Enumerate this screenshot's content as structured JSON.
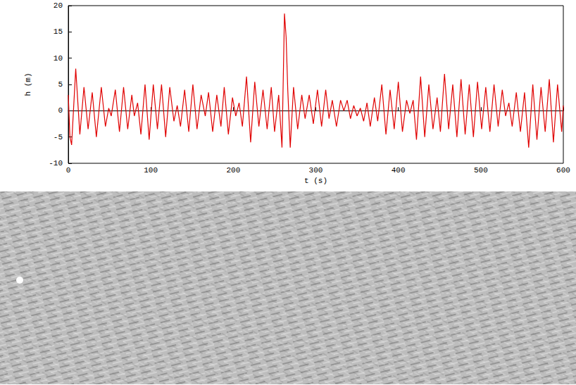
{
  "chart_data": {
    "type": "line",
    "x_label": "t (s)",
    "y_label": "h (m)",
    "color": "#e00000",
    "x": [
      0,
      2,
      4,
      9,
      14,
      19,
      24,
      29,
      34,
      40,
      45,
      49,
      52,
      57,
      62,
      67,
      72,
      77,
      80,
      84,
      88,
      93,
      98,
      103,
      108,
      113,
      118,
      123,
      128,
      132,
      136,
      141,
      146,
      151,
      156,
      161,
      166,
      170,
      175,
      180,
      185,
      189,
      194,
      199,
      203,
      207,
      211,
      216,
      221,
      226,
      231,
      236,
      241,
      246,
      250,
      255,
      259,
      262,
      264,
      266,
      269,
      273,
      278,
      283,
      287,
      292,
      297,
      302,
      307,
      312,
      316,
      320,
      325,
      330,
      334,
      338,
      342,
      346,
      350,
      354,
      358,
      362,
      366,
      371,
      375,
      380,
      385,
      390,
      395,
      400,
      405,
      410,
      414,
      418,
      422,
      427,
      432,
      437,
      442,
      447,
      451,
      456,
      461,
      466,
      471,
      476,
      481,
      486,
      491,
      496,
      501,
      506,
      511,
      516,
      521,
      526,
      530,
      534,
      538,
      543,
      548,
      553,
      558,
      563,
      568,
      573,
      578,
      583,
      588,
      593,
      598,
      600
    ],
    "values": [
      3,
      -5,
      -6.5,
      8,
      -4.5,
      4.5,
      -3.5,
      3.5,
      -5,
      4.5,
      -3,
      0.5,
      -1,
      4,
      -4,
      4.5,
      -3.5,
      3,
      -1,
      1.5,
      -4.5,
      5,
      -5.5,
      5,
      -3.5,
      5,
      -5,
      4.5,
      -2,
      1,
      -3,
      4,
      -4,
      5,
      -3.5,
      3,
      -1,
      3.5,
      -4,
      3,
      -3,
      4.5,
      -4.5,
      2.5,
      -1,
      1.5,
      -3,
      6.5,
      -6,
      5.5,
      -3,
      4,
      -3.5,
      4.5,
      -4,
      3,
      -7,
      18.5,
      14,
      4,
      -7,
      4.5,
      -3.5,
      3,
      -1.5,
      3,
      -2.5,
      4,
      -3,
      4,
      -1.5,
      2,
      -3,
      2,
      0,
      2,
      -1.5,
      1,
      -1,
      0.5,
      -2,
      1.5,
      -3,
      2.5,
      -2,
      5,
      -4.5,
      4,
      -3.5,
      5.5,
      -4,
      2,
      -0.5,
      2,
      -5.5,
      6.5,
      -5,
      5,
      -3.5,
      2.5,
      -4,
      7,
      -3.5,
      5,
      -5,
      6,
      -4.5,
      5,
      -5,
      5.5,
      -3.5,
      4.5,
      -4,
      5,
      -3,
      4,
      -1,
      1.5,
      -3,
      3.5,
      -4,
      3.5,
      -7,
      5,
      -5.5,
      4.5,
      -4,
      6,
      -6,
      5,
      -4,
      1
    ],
    "xlim": [
      0,
      600
    ],
    "xticks": [
      0,
      100,
      200,
      300,
      400,
      500,
      600
    ],
    "ylim": [
      -10,
      20
    ],
    "yticks": [
      -10,
      -5,
      0,
      5,
      10,
      15,
      20
    ],
    "grid": false
  }
}
